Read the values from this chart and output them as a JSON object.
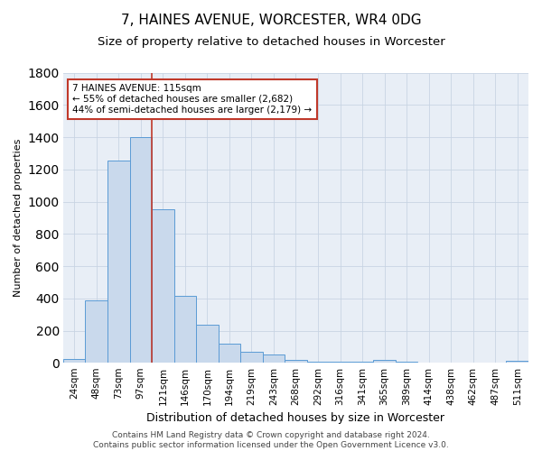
{
  "title": "7, HAINES AVENUE, WORCESTER, WR4 0DG",
  "subtitle": "Size of property relative to detached houses in Worcester",
  "xlabel": "Distribution of detached houses by size in Worcester",
  "ylabel": "Number of detached properties",
  "categories": [
    "24sqm",
    "48sqm",
    "73sqm",
    "97sqm",
    "121sqm",
    "146sqm",
    "170sqm",
    "194sqm",
    "219sqm",
    "243sqm",
    "268sqm",
    "292sqm",
    "316sqm",
    "341sqm",
    "365sqm",
    "389sqm",
    "414sqm",
    "438sqm",
    "462sqm",
    "487sqm",
    "511sqm"
  ],
  "values": [
    25,
    390,
    1255,
    1400,
    950,
    415,
    235,
    118,
    68,
    50,
    18,
    8,
    8,
    8,
    18,
    8,
    0,
    0,
    0,
    0,
    15
  ],
  "bar_color": "#c9d9ec",
  "bar_edge_color": "#5b9bd5",
  "bar_width": 1.0,
  "vline_x": 3.5,
  "vline_color": "#c0392b",
  "annotation_text": "7 HAINES AVENUE: 115sqm\n← 55% of detached houses are smaller (2,682)\n44% of semi-detached houses are larger (2,179) →",
  "annotation_box_color": "#ffffff",
  "annotation_box_edge": "#c0392b",
  "ylim": [
    0,
    1800
  ],
  "yticks": [
    0,
    200,
    400,
    600,
    800,
    1000,
    1200,
    1400,
    1600,
    1800
  ],
  "grid_color": "#c8d4e3",
  "background_color": "#e8eef6",
  "footer": "Contains HM Land Registry data © Crown copyright and database right 2024.\nContains public sector information licensed under the Open Government Licence v3.0.",
  "title_fontsize": 11,
  "subtitle_fontsize": 9.5,
  "xlabel_fontsize": 9,
  "ylabel_fontsize": 8,
  "tick_fontsize": 7.5,
  "footer_fontsize": 6.5
}
